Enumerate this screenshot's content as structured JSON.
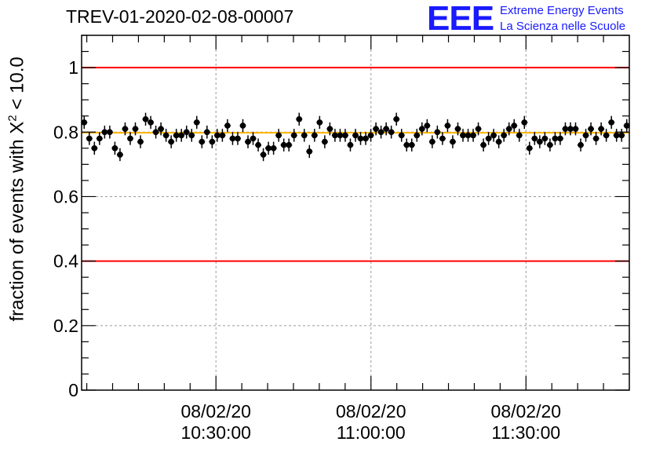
{
  "title": "TREV-01-2020-02-08-00007",
  "logo": {
    "mark": "EEE",
    "line1": "Extreme Energy Events",
    "line2": "La Scienza nelle Scuole"
  },
  "colors": {
    "reference_lines": "#ff0000",
    "mean_line": "#ffb400",
    "points": "#000000",
    "grid": "#9a9a9a",
    "logo": "#1a1aff"
  },
  "chart_data": {
    "type": "scatter",
    "ylabel_prefix": "fraction of events with",
    "ylabel_symbol": "X",
    "ylabel_sup": "2",
    "ylabel_suffix": "< 10.0",
    "ylim": [
      0,
      1.1
    ],
    "yticks": [
      "0",
      "0.2",
      "0.4",
      "0.6",
      "0.8",
      "1"
    ],
    "ytick_values": [
      0,
      0.2,
      0.4,
      0.6,
      0.8,
      1.0
    ],
    "xlim_minutes": [
      0,
      106
    ],
    "xticks": [
      {
        "date": "08/02/20",
        "time": "10:30:00",
        "minute": 26
      },
      {
        "date": "08/02/20",
        "time": "11:00:00",
        "minute": 56
      },
      {
        "date": "08/02/20",
        "time": "11:30:00",
        "minute": 86
      }
    ],
    "grid": true,
    "reference_lines": [
      1.0,
      0.4
    ],
    "mean_line": 0.798,
    "error": 0.02,
    "points": [
      0.83,
      0.78,
      0.75,
      0.78,
      0.8,
      0.8,
      0.75,
      0.73,
      0.81,
      0.78,
      0.81,
      0.77,
      0.84,
      0.83,
      0.8,
      0.81,
      0.79,
      0.77,
      0.79,
      0.79,
      0.8,
      0.79,
      0.83,
      0.77,
      0.8,
      0.77,
      0.79,
      0.79,
      0.82,
      0.78,
      0.78,
      0.82,
      0.77,
      0.78,
      0.76,
      0.73,
      0.75,
      0.75,
      0.79,
      0.76,
      0.76,
      0.79,
      0.84,
      0.79,
      0.74,
      0.79,
      0.83,
      0.77,
      0.81,
      0.79,
      0.79,
      0.79,
      0.76,
      0.79,
      0.78,
      0.78,
      0.79,
      0.81,
      0.8,
      0.81,
      0.8,
      0.84,
      0.79,
      0.76,
      0.76,
      0.79,
      0.81,
      0.82,
      0.77,
      0.8,
      0.78,
      0.82,
      0.77,
      0.81,
      0.79,
      0.79,
      0.79,
      0.81,
      0.76,
      0.78,
      0.79,
      0.77,
      0.79,
      0.81,
      0.82,
      0.79,
      0.83,
      0.75,
      0.78,
      0.77,
      0.78,
      0.76,
      0.78,
      0.78,
      0.81,
      0.81,
      0.81,
      0.76,
      0.79,
      0.81,
      0.78,
      0.81,
      0.79,
      0.83,
      0.79,
      0.79,
      0.82
    ]
  }
}
